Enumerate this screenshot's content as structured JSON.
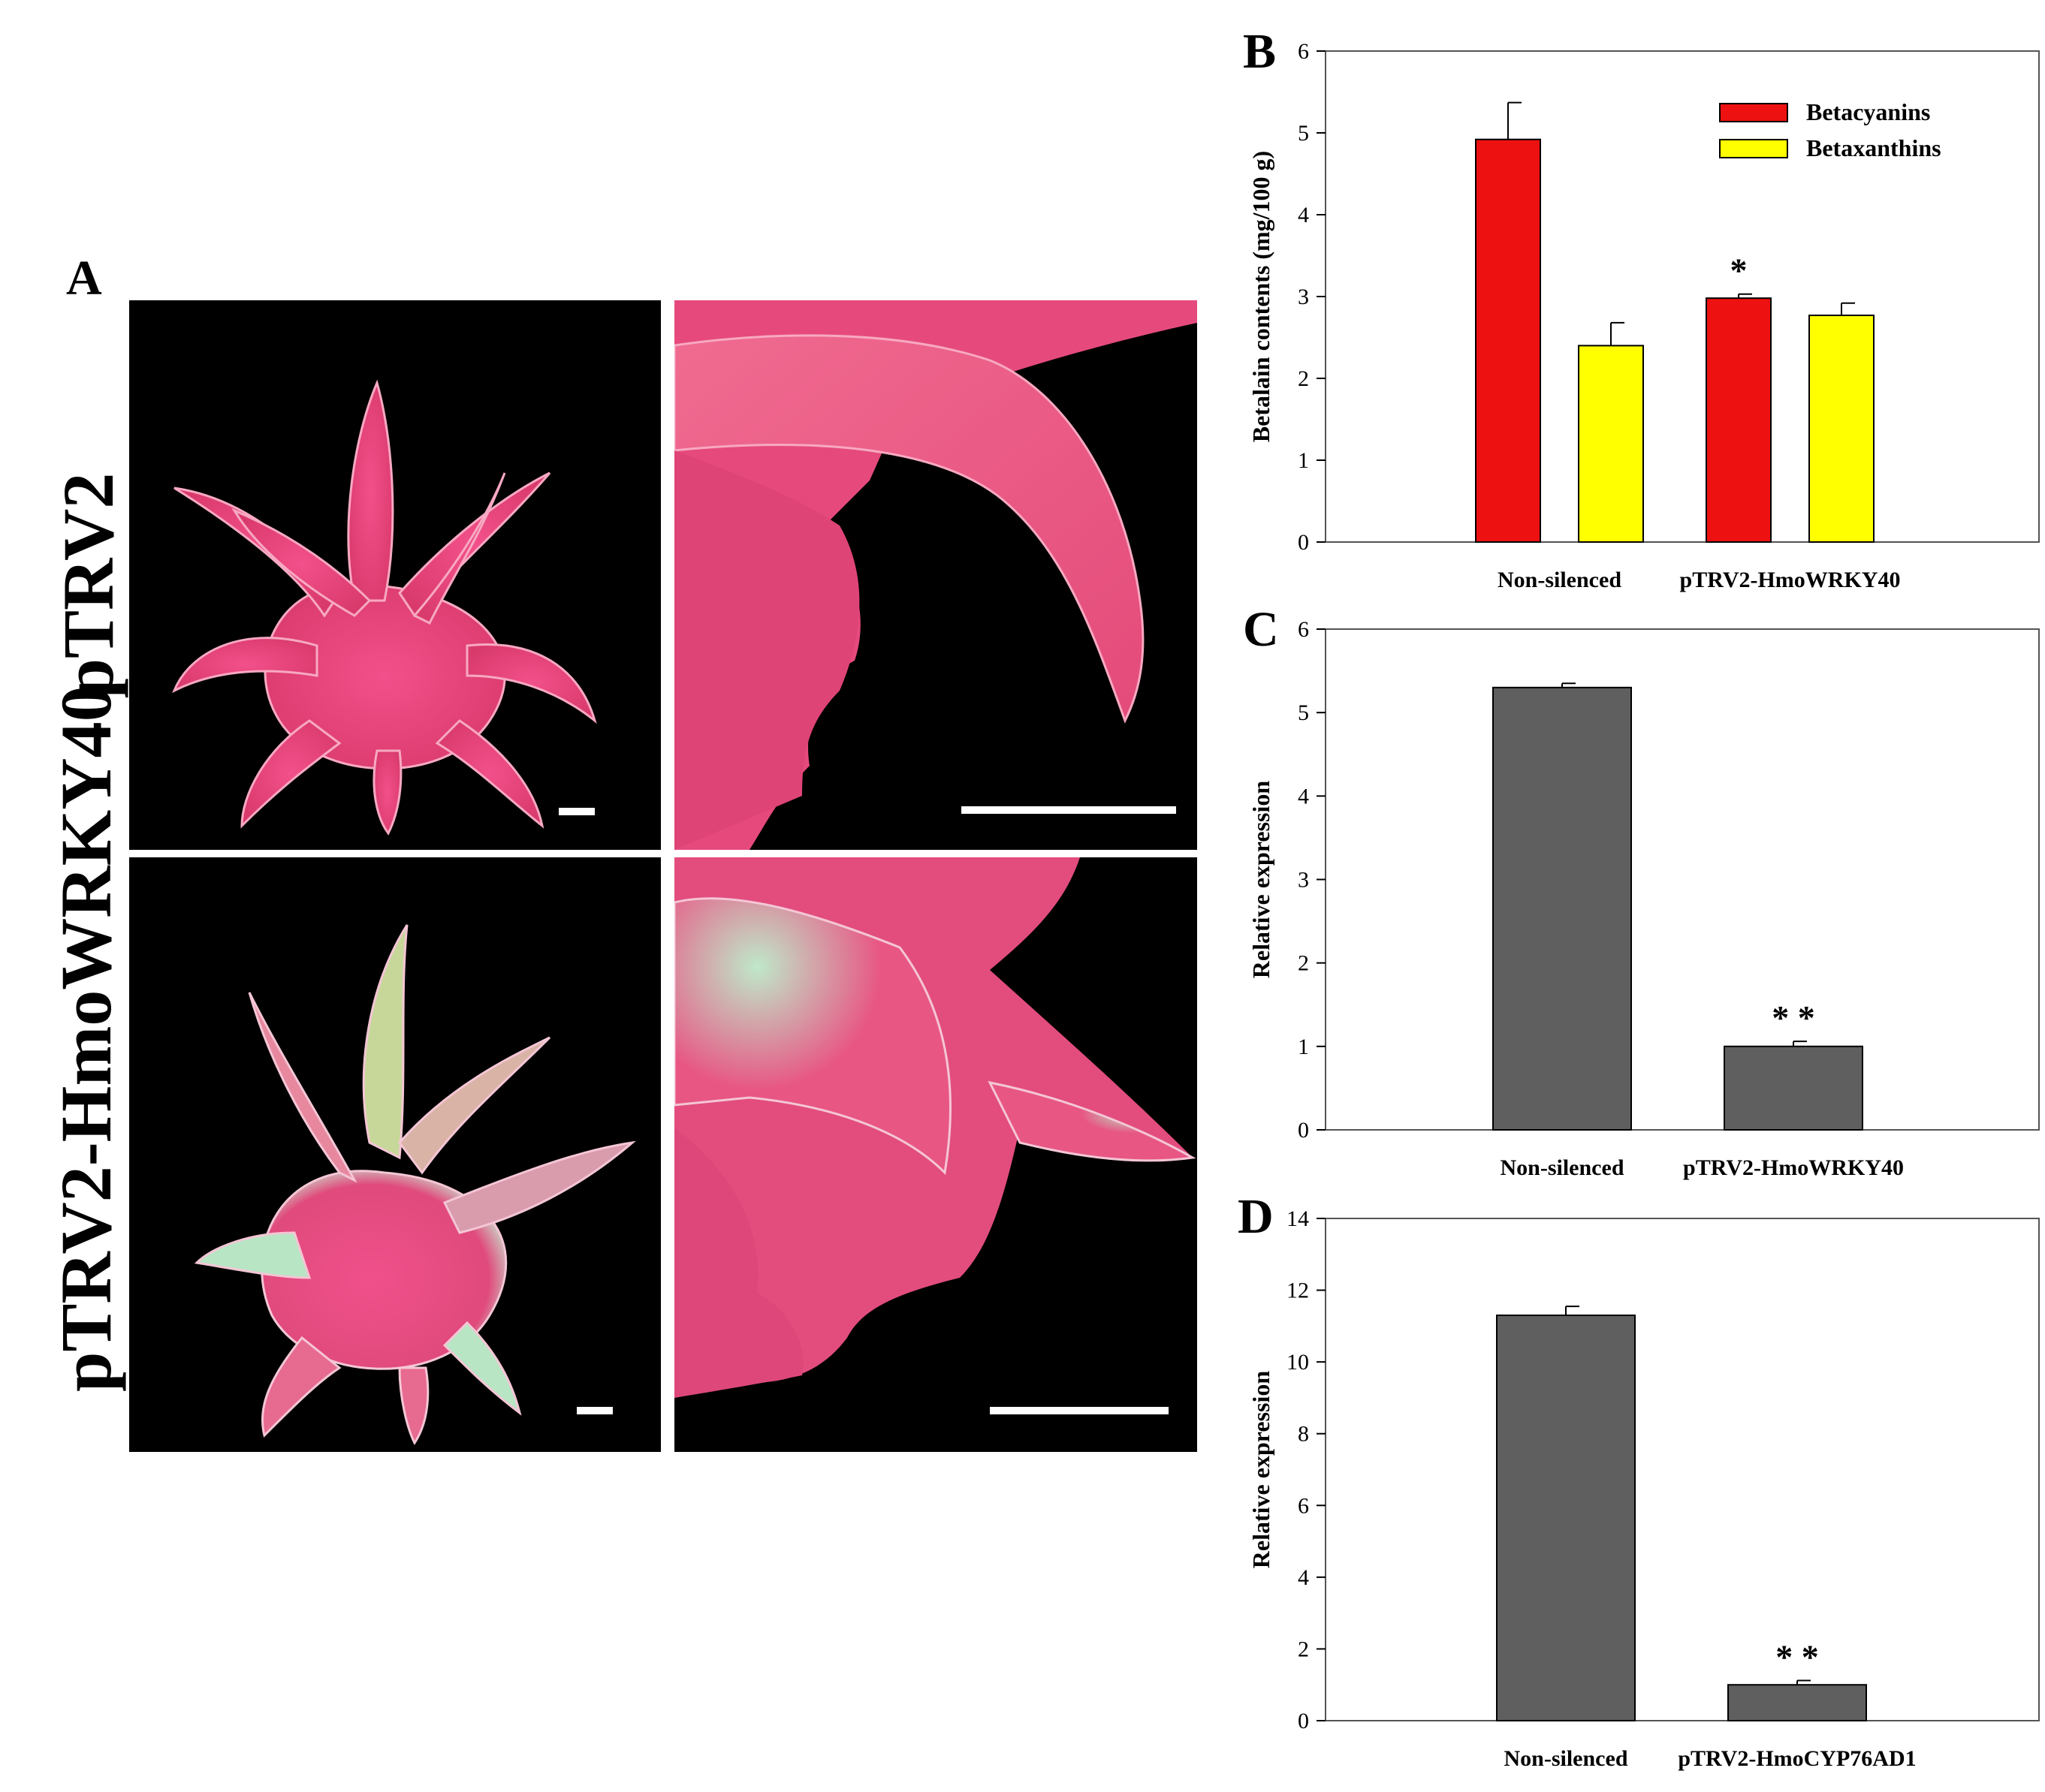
{
  "panel_a": {
    "letter": "A",
    "rows": [
      {
        "label": "pTRV2"
      },
      {
        "label": "pTRV2-HmoWRKY40"
      }
    ]
  },
  "colors": {
    "betacyanins": "#ee1111",
    "betaxanthins": "#ffff00",
    "expression_bar": "#5f5f5f",
    "fruit_pink": "#e8457a",
    "bract_green": "#b8e6c4",
    "background_black": "#000000"
  },
  "chart_data": [
    {
      "panel": "B",
      "type": "bar",
      "ylabel": "Betalain contents (mg/100 g)",
      "categories": [
        "Non-silenced",
        "pTRV2-HmoWRKY40"
      ],
      "ylim": [
        0,
        6
      ],
      "yticks": [
        0,
        1,
        2,
        3,
        4,
        5,
        6
      ],
      "legend_position": "top-right",
      "series": [
        {
          "name": "Betacyanins",
          "color": "#ee1111",
          "values": [
            4.92,
            2.98
          ],
          "errors": [
            0.45,
            0.05
          ]
        },
        {
          "name": "Betaxanthins",
          "color": "#ffff00",
          "values": [
            2.4,
            2.77
          ],
          "errors": [
            0.28,
            0.15
          ]
        }
      ],
      "annotations": [
        {
          "category": 1,
          "series": 0,
          "text": "*"
        }
      ]
    },
    {
      "panel": "C",
      "type": "bar",
      "ylabel": "Relative expression",
      "categories": [
        "Non-silenced",
        "pTRV2-HmoWRKY40"
      ],
      "ylim": [
        0,
        6
      ],
      "yticks": [
        0,
        1,
        2,
        3,
        4,
        5,
        6
      ],
      "series": [
        {
          "color": "#5f5f5f",
          "values": [
            5.3,
            1.0
          ],
          "errors": [
            0.05,
            0.06
          ]
        }
      ],
      "annotations": [
        {
          "category": 1,
          "series": 0,
          "text": "* *"
        }
      ]
    },
    {
      "panel": "D",
      "type": "bar",
      "ylabel": "Relative expression",
      "categories": [
        "Non-silenced",
        "pTRV2-HmoCYP76AD1"
      ],
      "ylim": [
        0,
        14
      ],
      "yticks": [
        0,
        2,
        4,
        6,
        8,
        10,
        12,
        14
      ],
      "series": [
        {
          "color": "#5f5f5f",
          "values": [
            11.3,
            1.0
          ],
          "errors": [
            0.25,
            0.12
          ]
        }
      ],
      "annotations": [
        {
          "category": 1,
          "series": 0,
          "text": "* *"
        }
      ]
    }
  ]
}
